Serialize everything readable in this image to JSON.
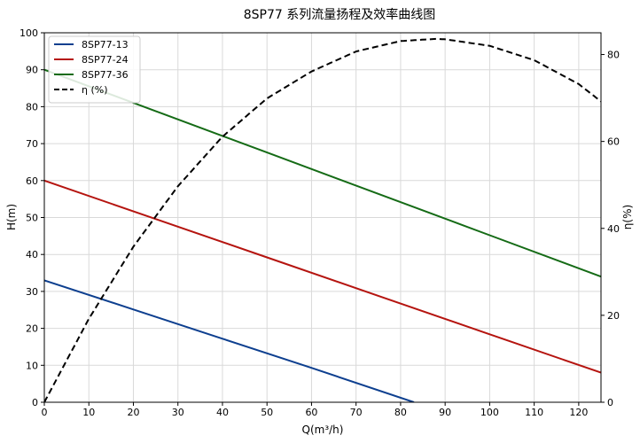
{
  "chart_data": {
    "type": "line",
    "title": "8SP77 系列流量扬程及效率曲线图",
    "xlabel": "Q(m³/h)",
    "ylabel": "H(m)",
    "y2label": "η(%)",
    "xlim": [
      0,
      125
    ],
    "ylim": [
      0,
      100
    ],
    "y2lim": [
      0,
      85
    ],
    "xticks": [
      "0",
      "10",
      "20",
      "30",
      "40",
      "50",
      "60",
      "70",
      "80",
      "90",
      "100",
      "110",
      "120"
    ],
    "yticks": [
      "0",
      "10",
      "20",
      "30",
      "40",
      "50",
      "60",
      "70",
      "80",
      "90",
      "100"
    ],
    "y2ticks": [
      "0",
      "20",
      "40",
      "60",
      "80"
    ],
    "grid": true,
    "legend_position": "top-left",
    "series": [
      {
        "name": "8SP77-13",
        "axis": "left",
        "color": "#0d3f8f",
        "style": "solid",
        "x": [
          0,
          20,
          40,
          60,
          83
        ],
        "values": [
          33,
          25.1,
          17.2,
          9.3,
          0
        ]
      },
      {
        "name": "8SP77-24",
        "axis": "left",
        "color": "#b5140f",
        "style": "solid",
        "x": [
          0,
          25,
          50,
          75,
          100,
          125
        ],
        "values": [
          60,
          49.6,
          39.2,
          28.8,
          18.4,
          8
        ]
      },
      {
        "name": "8SP77-36",
        "axis": "left",
        "color": "#156b16",
        "style": "solid",
        "x": [
          0,
          25,
          50,
          75,
          100,
          125
        ],
        "values": [
          90,
          78.8,
          67.6,
          56.4,
          45.2,
          34
        ]
      },
      {
        "name": "η (%)",
        "axis": "right",
        "color": "#000000",
        "style": "dashed",
        "x": [
          0,
          10,
          20,
          30,
          40,
          50,
          60,
          70,
          80,
          88,
          90,
          100,
          110,
          120,
          125
        ],
        "values": [
          0,
          19.2,
          35.8,
          49.7,
          61.1,
          69.9,
          76.1,
          80.7,
          83.1,
          83.6,
          83.5,
          82.0,
          78.7,
          73.2,
          69.2
        ]
      }
    ]
  }
}
